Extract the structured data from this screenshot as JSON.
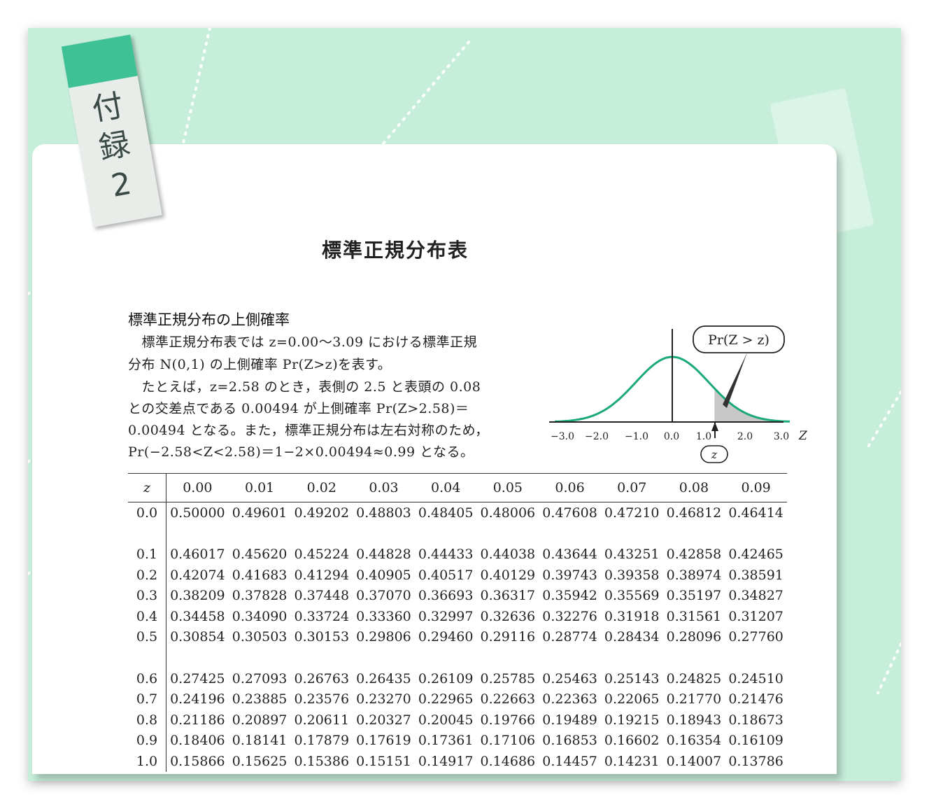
{
  "tab": {
    "lines": [
      "付",
      "録",
      "2"
    ],
    "color": "#3fc196"
  },
  "title": "標準正規分布表",
  "subtitle": "標準正規分布の上側確率",
  "paragraph": [
    "　標準正規分布表では z=0.00〜3.09 における標準正規",
    "分布 N(0,1) の上側確率 Pr(Z>z)を表す。",
    "　たとえば，z=2.58 のとき，表側の 2.5 と表頭の 0.08",
    "との交差点である 0.00494 が上側確率 Pr(Z>2.58)＝",
    "0.00494 となる。また，標準正規分布は左右対称のため，",
    "Pr(−2.58<Z<2.58)＝1−2×0.00494≈0.99 となる。"
  ],
  "figure": {
    "callout": "Pr(Z > z)",
    "axis_label": "Z",
    "z_marker": "z",
    "ticks": [
      "−3.0",
      "−2.0",
      "−1.0",
      "0.0",
      "1.0",
      "2.0",
      "3.0"
    ],
    "curve_color": "#1aa97a",
    "shade_color": "#c8c8c8"
  },
  "table": {
    "corner": "z",
    "headers": [
      "0.00",
      "0.01",
      "0.02",
      "0.03",
      "0.04",
      "0.05",
      "0.06",
      "0.07",
      "0.08",
      "0.09"
    ],
    "rows": [
      {
        "z": "0.0",
        "values": [
          "0.50000",
          "0.49601",
          "0.49202",
          "0.48803",
          "0.48405",
          "0.48006",
          "0.47608",
          "0.47210",
          "0.46812",
          "0.46414"
        ]
      },
      {
        "z": "0.1",
        "values": [
          "0.46017",
          "0.45620",
          "0.45224",
          "0.44828",
          "0.44433",
          "0.44038",
          "0.43644",
          "0.43251",
          "0.42858",
          "0.42465"
        ]
      },
      {
        "z": "0.2",
        "values": [
          "0.42074",
          "0.41683",
          "0.41294",
          "0.40905",
          "0.40517",
          "0.40129",
          "0.39743",
          "0.39358",
          "0.38974",
          "0.38591"
        ]
      },
      {
        "z": "0.3",
        "values": [
          "0.38209",
          "0.37828",
          "0.37448",
          "0.37070",
          "0.36693",
          "0.36317",
          "0.35942",
          "0.35569",
          "0.35197",
          "0.34827"
        ]
      },
      {
        "z": "0.4",
        "values": [
          "0.34458",
          "0.34090",
          "0.33724",
          "0.33360",
          "0.32997",
          "0.32636",
          "0.32276",
          "0.31918",
          "0.31561",
          "0.31207"
        ]
      },
      {
        "z": "0.5",
        "values": [
          "0.30854",
          "0.30503",
          "0.30153",
          "0.29806",
          "0.29460",
          "0.29116",
          "0.28774",
          "0.28434",
          "0.28096",
          "0.27760"
        ]
      },
      {
        "z": "0.6",
        "values": [
          "0.27425",
          "0.27093",
          "0.26763",
          "0.26435",
          "0.26109",
          "0.25785",
          "0.25463",
          "0.25143",
          "0.24825",
          "0.24510"
        ]
      },
      {
        "z": "0.7",
        "values": [
          "0.24196",
          "0.23885",
          "0.23576",
          "0.23270",
          "0.22965",
          "0.22663",
          "0.22363",
          "0.22065",
          "0.21770",
          "0.21476"
        ]
      },
      {
        "z": "0.8",
        "values": [
          "0.21186",
          "0.20897",
          "0.20611",
          "0.20327",
          "0.20045",
          "0.19766",
          "0.19489",
          "0.19215",
          "0.18943",
          "0.18673"
        ]
      },
      {
        "z": "0.9",
        "values": [
          "0.18406",
          "0.18141",
          "0.17879",
          "0.17619",
          "0.17361",
          "0.17106",
          "0.16853",
          "0.16602",
          "0.16354",
          "0.16109"
        ]
      },
      {
        "z": "1.0",
        "values": [
          "0.15866",
          "0.15625",
          "0.15386",
          "0.15151",
          "0.14917",
          "0.14686",
          "0.14457",
          "0.14231",
          "0.14007",
          "0.13786"
        ]
      }
    ]
  },
  "colors": {
    "background": "#c7eedb",
    "card": "#ffffff",
    "accent": "#3fc196"
  }
}
